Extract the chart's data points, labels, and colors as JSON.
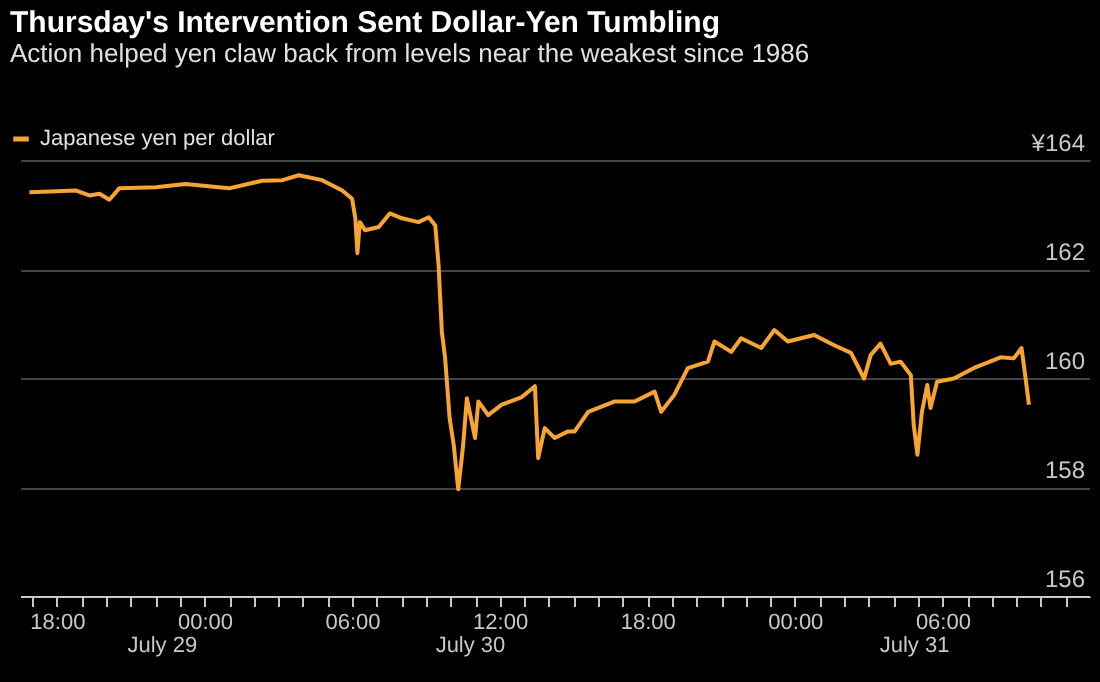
{
  "chart_data": {
    "type": "line",
    "title": "Thursday's Intervention Sent Dollar-Yen Tumbling",
    "subtitle": "Action helped yen claw back from levels near the weakest since 1986",
    "x": [
      "--07-28T16:53",
      "--07-28T18:47",
      "--07-28T19:19",
      "--07-28T19:44",
      "--07-28T20:08",
      "--07-28T20:32",
      "--07-28T22:01",
      "--07-28T23:14",
      "--07-29T01:00",
      "--07-29T02:21",
      "--07-29T03:10",
      "--07-29T03:50",
      "--07-29T04:47",
      "--07-29T05:36",
      "--07-29T06:00",
      "--07-29T06:08",
      "--07-29T06:13",
      "--07-29T06:19",
      "--07-29T06:32",
      "--07-29T07:05",
      "--07-29T07:32",
      "--07-29T08:02",
      "--07-29T08:42",
      "--07-29T09:07",
      "--07-29T09:23",
      "--07-29T09:31",
      "--07-29T09:39",
      "--07-29T09:47",
      "--07-29T09:58",
      "--07-29T10:08",
      "--07-29T10:19",
      "--07-29T10:31",
      "--07-29T10:40",
      "--07-29T11:00",
      "--07-29T11:08",
      "--07-29T11:32",
      "--07-29T12:05",
      "--07-29T12:54",
      "--07-29T13:26",
      "--07-29T13:34",
      "--07-29T13:50",
      "--07-29T14:14",
      "--07-29T14:47",
      "--07-29T15:03",
      "--07-29T15:36",
      "--07-29T16:41",
      "--07-29T17:29",
      "--07-29T18:18",
      "--07-29T18:34",
      "--07-29T19:06",
      "--07-29T19:39",
      "--07-29T20:28",
      "--07-29T20:44",
      "--07-29T21:25",
      "--07-29T21:49",
      "--07-29T22:38",
      "--07-29T23:10",
      "--07-29T23:43",
      "--07-30T00:47",
      "--07-30T01:36",
      "--07-30T02:17",
      "--07-30T02:49",
      "--07-30T03:05",
      "--07-30T03:29",
      "--07-30T03:54",
      "--07-30T04:18",
      "--07-30T04:43",
      "--07-30T04:50",
      "--07-30T04:59",
      "--07-30T05:10",
      "--07-30T05:23",
      "--07-30T05:31",
      "--07-30T05:47",
      "--07-30T06:28",
      "--07-30T07:16",
      "--07-30T08:22",
      "--07-30T08:54",
      "--07-30T09:13",
      "--07-30T09:23",
      "--07-30T09:31"
    ],
    "series": [
      {
        "name": "Japanese yen per dollar",
        "color": "#f7a433",
        "values": [
          163.41,
          163.44,
          163.35,
          163.38,
          163.27,
          163.48,
          163.5,
          163.56,
          163.48,
          163.62,
          163.63,
          163.72,
          163.63,
          163.44,
          163.29,
          162.93,
          162.29,
          162.86,
          162.71,
          162.77,
          163.02,
          162.93,
          162.86,
          162.95,
          162.8,
          162.07,
          160.85,
          160.36,
          159.26,
          158.77,
          157.96,
          158.77,
          159.63,
          158.9,
          159.57,
          159.32,
          159.51,
          159.65,
          159.85,
          158.53,
          159.08,
          158.9,
          159.02,
          159.02,
          159.38,
          159.57,
          159.57,
          159.75,
          159.38,
          159.69,
          160.18,
          160.3,
          160.67,
          160.48,
          160.73,
          160.55,
          160.88,
          160.67,
          160.79,
          160.6,
          160.46,
          159.99,
          160.42,
          160.63,
          160.26,
          160.3,
          160.05,
          159.14,
          158.59,
          159.38,
          159.87,
          159.45,
          159.93,
          159.99,
          160.18,
          160.38,
          160.36,
          160.55,
          159.99,
          159.51
        ]
      }
    ],
    "xlim": [
      "--07-28T16:30",
      "--07-30T12:00"
    ],
    "xticks": [
      {
        "value": "--07-28T17:00",
        "label": null
      },
      {
        "value": "--07-28T18:00",
        "label": "18:00"
      },
      {
        "value": "--07-28T19:00",
        "label": null
      },
      {
        "value": "--07-28T20:00",
        "label": null
      },
      {
        "value": "--07-28T21:00",
        "label": null
      },
      {
        "value": "--07-28T22:00",
        "label": null
      },
      {
        "value": "--07-28T23:00",
        "label": null
      },
      {
        "value": "--07-29T00:00",
        "label": "00:00"
      },
      {
        "value": "--07-29T01:00",
        "label": null
      },
      {
        "value": "--07-29T02:00",
        "label": null
      },
      {
        "value": "--07-29T03:00",
        "label": null
      },
      {
        "value": "--07-29T04:00",
        "label": null
      },
      {
        "value": "--07-29T05:00",
        "label": null
      },
      {
        "value": "--07-29T06:00",
        "label": "06:00"
      },
      {
        "value": "--07-29T07:00",
        "label": null
      },
      {
        "value": "--07-29T08:00",
        "label": null
      },
      {
        "value": "--07-29T09:00",
        "label": null
      },
      {
        "value": "--07-29T10:00",
        "label": null
      },
      {
        "value": "--07-29T11:00",
        "label": null
      },
      {
        "value": "--07-29T12:00",
        "label": "12:00"
      },
      {
        "value": "--07-29T13:00",
        "label": null
      },
      {
        "value": "--07-29T14:00",
        "label": null
      },
      {
        "value": "--07-29T15:00",
        "label": null
      },
      {
        "value": "--07-29T16:00",
        "label": null
      },
      {
        "value": "--07-29T17:00",
        "label": null
      },
      {
        "value": "--07-29T18:00",
        "label": "18:00"
      },
      {
        "value": "--07-29T19:00",
        "label": null
      },
      {
        "value": "--07-29T20:00",
        "label": null
      },
      {
        "value": "--07-29T21:00",
        "label": null
      },
      {
        "value": "--07-29T22:00",
        "label": null
      },
      {
        "value": "--07-29T23:00",
        "label": null
      },
      {
        "value": "--07-30T00:00",
        "label": "00:00"
      },
      {
        "value": "--07-30T01:00",
        "label": null
      },
      {
        "value": "--07-30T02:00",
        "label": null
      },
      {
        "value": "--07-30T03:00",
        "label": null
      },
      {
        "value": "--07-30T04:00",
        "label": null
      },
      {
        "value": "--07-30T05:00",
        "label": null
      },
      {
        "value": "--07-30T06:00",
        "label": "06:00"
      },
      {
        "value": "--07-30T07:00",
        "label": null
      },
      {
        "value": "--07-30T08:00",
        "label": null
      },
      {
        "value": "--07-30T09:00",
        "label": null
      },
      {
        "value": "--07-30T10:00",
        "label": null
      },
      {
        "value": "--07-30T11:00",
        "label": null
      }
    ],
    "annotations": [
      "July 29",
      "July 30",
      "July 31"
    ],
    "ylim": [
      156,
      164
    ],
    "yticks": [
      156,
      158,
      160,
      162,
      {
        "value": 164,
        "label": "¥164"
      }
    ],
    "grid": "y",
    "legend": "top left",
    "marker": "none",
    "line_style": "solid"
  }
}
